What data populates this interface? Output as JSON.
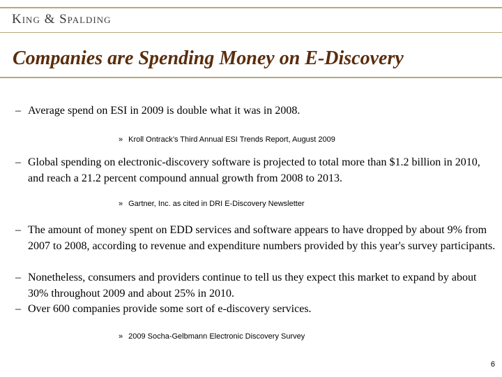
{
  "header": {
    "logo_text": "King & Spalding"
  },
  "slide": {
    "title": "Companies are Spending Money on E-Discovery",
    "bullet_char": "–",
    "source_char": "»",
    "bullets": [
      {
        "text": "Average spend on ESI in 2009 is double what it was in 2008."
      },
      {
        "text": "Global spending on electronic-discovery software is projected to total more than $1.2 billion in 2010, and reach a 21.2 percent compound annual growth from 2008 to 2013."
      },
      {
        "text": "The amount of money spent on EDD services and software appears to have dropped by about 9% from 2007 to 2008, according to revenue and expenditure numbers provided by this year's survey participants."
      },
      {
        "text": "Nonetheless, consumers and providers continue to tell us they expect this market to expand by about 30% throughout 2009 and about 25% in 2010."
      },
      {
        "text": "Over 600 companies provide some sort of e-discovery services."
      }
    ],
    "sources": [
      {
        "text": "Kroll Ontrack’s Third Annual ESI Trends Report, August 2009"
      },
      {
        "text": "Gartner, Inc. as cited in DRI E-Discovery Newsletter"
      },
      {
        "text": "2009 Socha-Gelbmann Electronic Discovery Survey"
      }
    ],
    "page_number": "6"
  }
}
